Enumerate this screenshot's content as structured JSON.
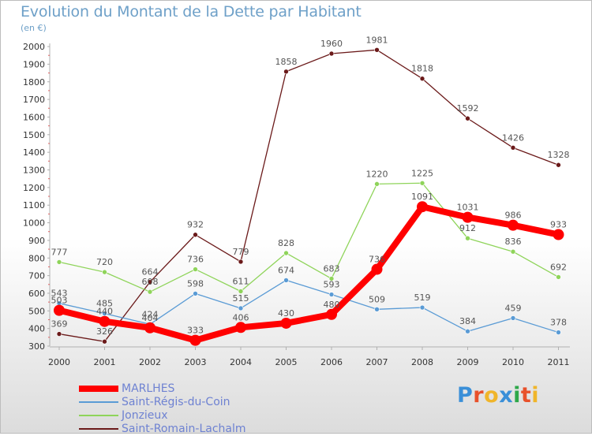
{
  "title": "Evolution du Montant de la Dette par Habitant",
  "unit_label": "(en €)",
  "logo": {
    "letters": [
      "P",
      "r",
      "o",
      "x",
      "i",
      "t",
      "i"
    ],
    "colors": [
      "#3a8fd8",
      "#e8512b",
      "#f0b52a",
      "#3a8fd8",
      "#2ea84a",
      "#e8512b",
      "#f0b52a"
    ]
  },
  "chart_data": {
    "type": "line",
    "title": "Evolution du Montant de la Dette par Habitant",
    "ylabel": "(en €)",
    "xlabel": "",
    "x": [
      "2000",
      "2001",
      "2002",
      "2003",
      "2004",
      "2005",
      "2006",
      "2007",
      "2008",
      "2009",
      "2010",
      "2011"
    ],
    "ylim": [
      300,
      2000
    ],
    "ytick_step": 100,
    "grid": false,
    "legend_position": "bottom-left",
    "series": [
      {
        "name": "MARLHES",
        "color": "#ff0000",
        "values": [
          503,
          440,
          404,
          333,
          406,
          430,
          480,
          736,
          1091,
          1031,
          986,
          933
        ]
      },
      {
        "name": "Saint-Régis-du-Coin",
        "color": "#5a9bd5",
        "values": [
          543,
          485,
          424,
          598,
          515,
          674,
          593,
          509,
          519,
          384,
          459,
          378
        ]
      },
      {
        "name": "Jonzieux",
        "color": "#8fd45a",
        "values": [
          777,
          720,
          608,
          736,
          611,
          828,
          683,
          1220,
          1225,
          912,
          836,
          692
        ]
      },
      {
        "name": "Saint-Romain-Lachalm",
        "color": "#6b1a1a",
        "values": [
          369,
          326,
          664,
          932,
          779,
          1858,
          1960,
          1981,
          1818,
          1592,
          1426,
          1328
        ]
      }
    ]
  }
}
